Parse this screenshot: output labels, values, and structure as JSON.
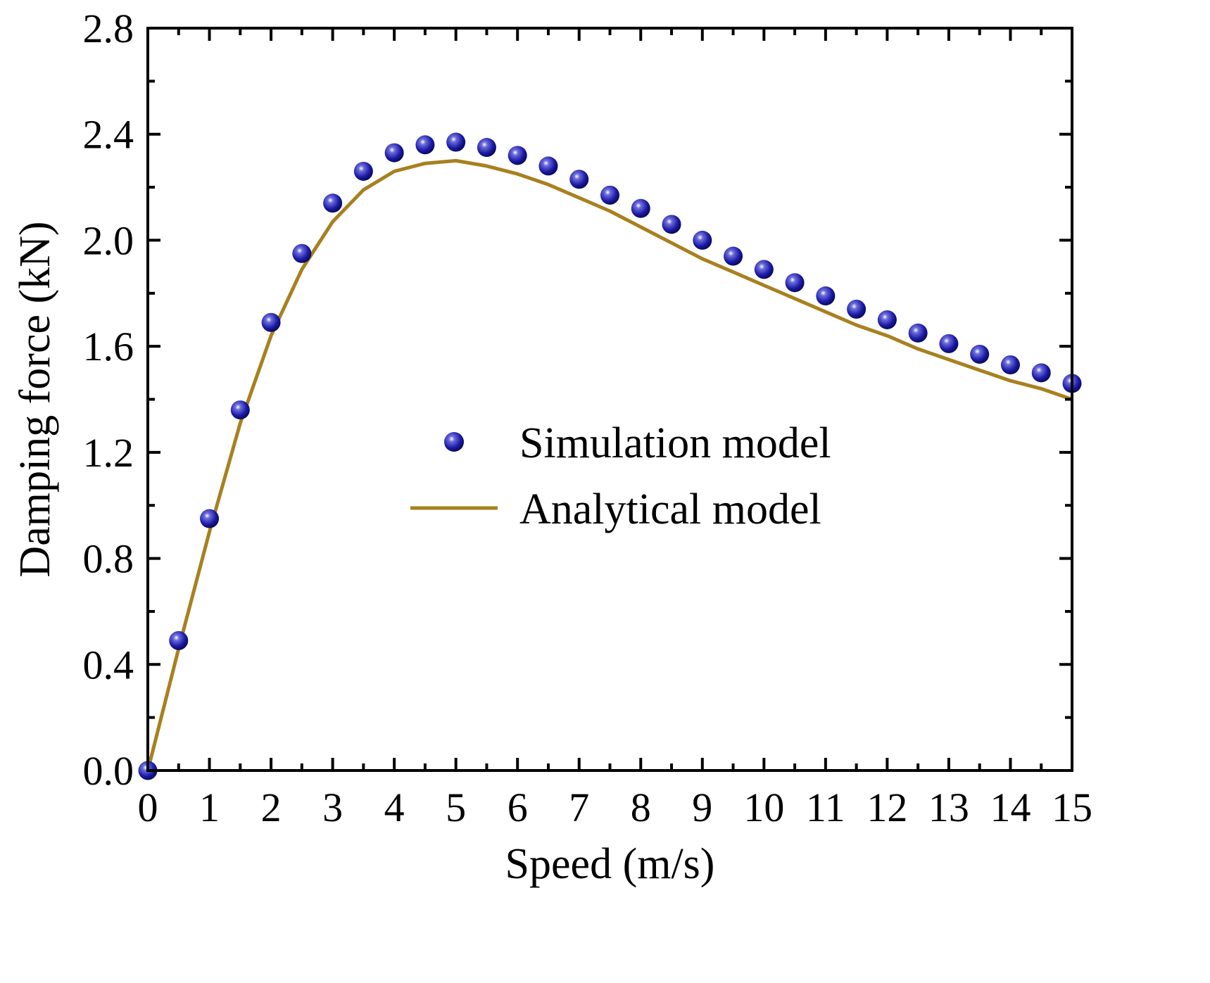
{
  "chart_data": {
    "type": "line",
    "title": "",
    "xlabel": "Speed (m/s)",
    "ylabel": "Damping force (kN)",
    "xlim": [
      0,
      15
    ],
    "ylim": [
      0,
      2.8
    ],
    "xticks": [
      0,
      1,
      2,
      3,
      4,
      5,
      6,
      7,
      8,
      9,
      10,
      11,
      12,
      13,
      14,
      15
    ],
    "yticks": [
      0.0,
      0.4,
      0.8,
      1.2,
      1.6,
      2.0,
      2.4,
      2.8
    ],
    "xtick_labels": [
      "0",
      "1",
      "2",
      "3",
      "4",
      "5",
      "6",
      "7",
      "8",
      "9",
      "10",
      "11",
      "12",
      "13",
      "14",
      "15"
    ],
    "ytick_labels": [
      "0.0",
      "0.4",
      "0.8",
      "1.2",
      "1.6",
      "2.0",
      "2.4",
      "2.8"
    ],
    "grid": false,
    "legend_position": "center",
    "series": [
      {
        "name": "Simulation model",
        "kind": "scatter",
        "color": "#1a1aa6",
        "x": [
          0,
          0.5,
          1,
          1.5,
          2,
          2.5,
          3,
          3.5,
          4,
          4.5,
          5,
          5.5,
          6,
          6.5,
          7,
          7.5,
          8,
          8.5,
          9,
          9.5,
          10,
          10.5,
          11,
          11.5,
          12,
          12.5,
          13,
          13.5,
          14,
          14.5,
          15
        ],
        "y": [
          0.0,
          0.49,
          0.95,
          1.36,
          1.69,
          1.95,
          2.14,
          2.26,
          2.33,
          2.36,
          2.37,
          2.35,
          2.32,
          2.28,
          2.23,
          2.17,
          2.12,
          2.06,
          2.0,
          1.94,
          1.89,
          1.84,
          1.79,
          1.74,
          1.7,
          1.65,
          1.61,
          1.57,
          1.53,
          1.5,
          1.46
        ]
      },
      {
        "name": "Analytical model",
        "kind": "line",
        "color": "#a8801e",
        "x": [
          0,
          0.5,
          1,
          1.5,
          2,
          2.5,
          3,
          3.5,
          4,
          4.5,
          5,
          5.5,
          6,
          6.5,
          7,
          7.5,
          8,
          8.5,
          9,
          9.5,
          10,
          10.5,
          11,
          11.5,
          12,
          12.5,
          13,
          13.5,
          14,
          14.5,
          15
        ],
        "y": [
          0.0,
          0.46,
          0.9,
          1.31,
          1.64,
          1.89,
          2.07,
          2.19,
          2.26,
          2.29,
          2.3,
          2.28,
          2.25,
          2.21,
          2.16,
          2.11,
          2.05,
          1.99,
          1.93,
          1.88,
          1.83,
          1.78,
          1.73,
          1.68,
          1.64,
          1.59,
          1.55,
          1.51,
          1.47,
          1.44,
          1.4
        ]
      }
    ]
  }
}
